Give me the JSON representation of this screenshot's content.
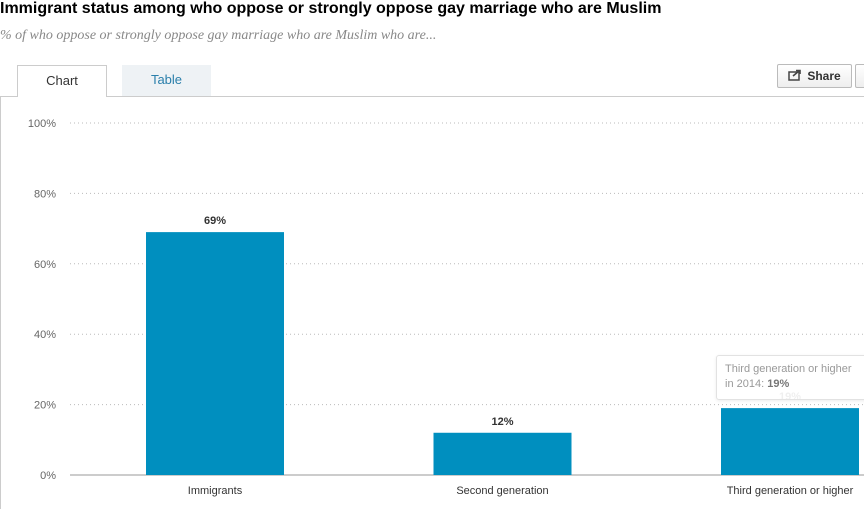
{
  "header": {
    "title": "Immigrant status among who oppose or strongly oppose gay marriage who are Muslim",
    "subtitle": "% of who oppose or strongly oppose gay marriage who are Muslim who are..."
  },
  "tabs": [
    {
      "label": "Chart",
      "active": true
    },
    {
      "label": "Table",
      "active": false
    }
  ],
  "toolbar": {
    "share_label": "Share"
  },
  "tooltip": {
    "line1": "Third generation or higher",
    "line2_prefix": "in 2014: ",
    "line2_value": "19%"
  },
  "chart_data": {
    "type": "bar",
    "categories": [
      "Immigrants",
      "Second generation",
      "Third generation or higher"
    ],
    "values": [
      69,
      12,
      19
    ],
    "value_labels": [
      "69%",
      "12%",
      "19%"
    ],
    "ylim": [
      0,
      100
    ],
    "yticks": [
      0,
      20,
      40,
      60,
      80,
      100
    ],
    "ytick_labels": [
      "0%",
      "20%",
      "40%",
      "60%",
      "80%",
      "100%"
    ],
    "grid": true,
    "bar_color": "#008fbf"
  }
}
